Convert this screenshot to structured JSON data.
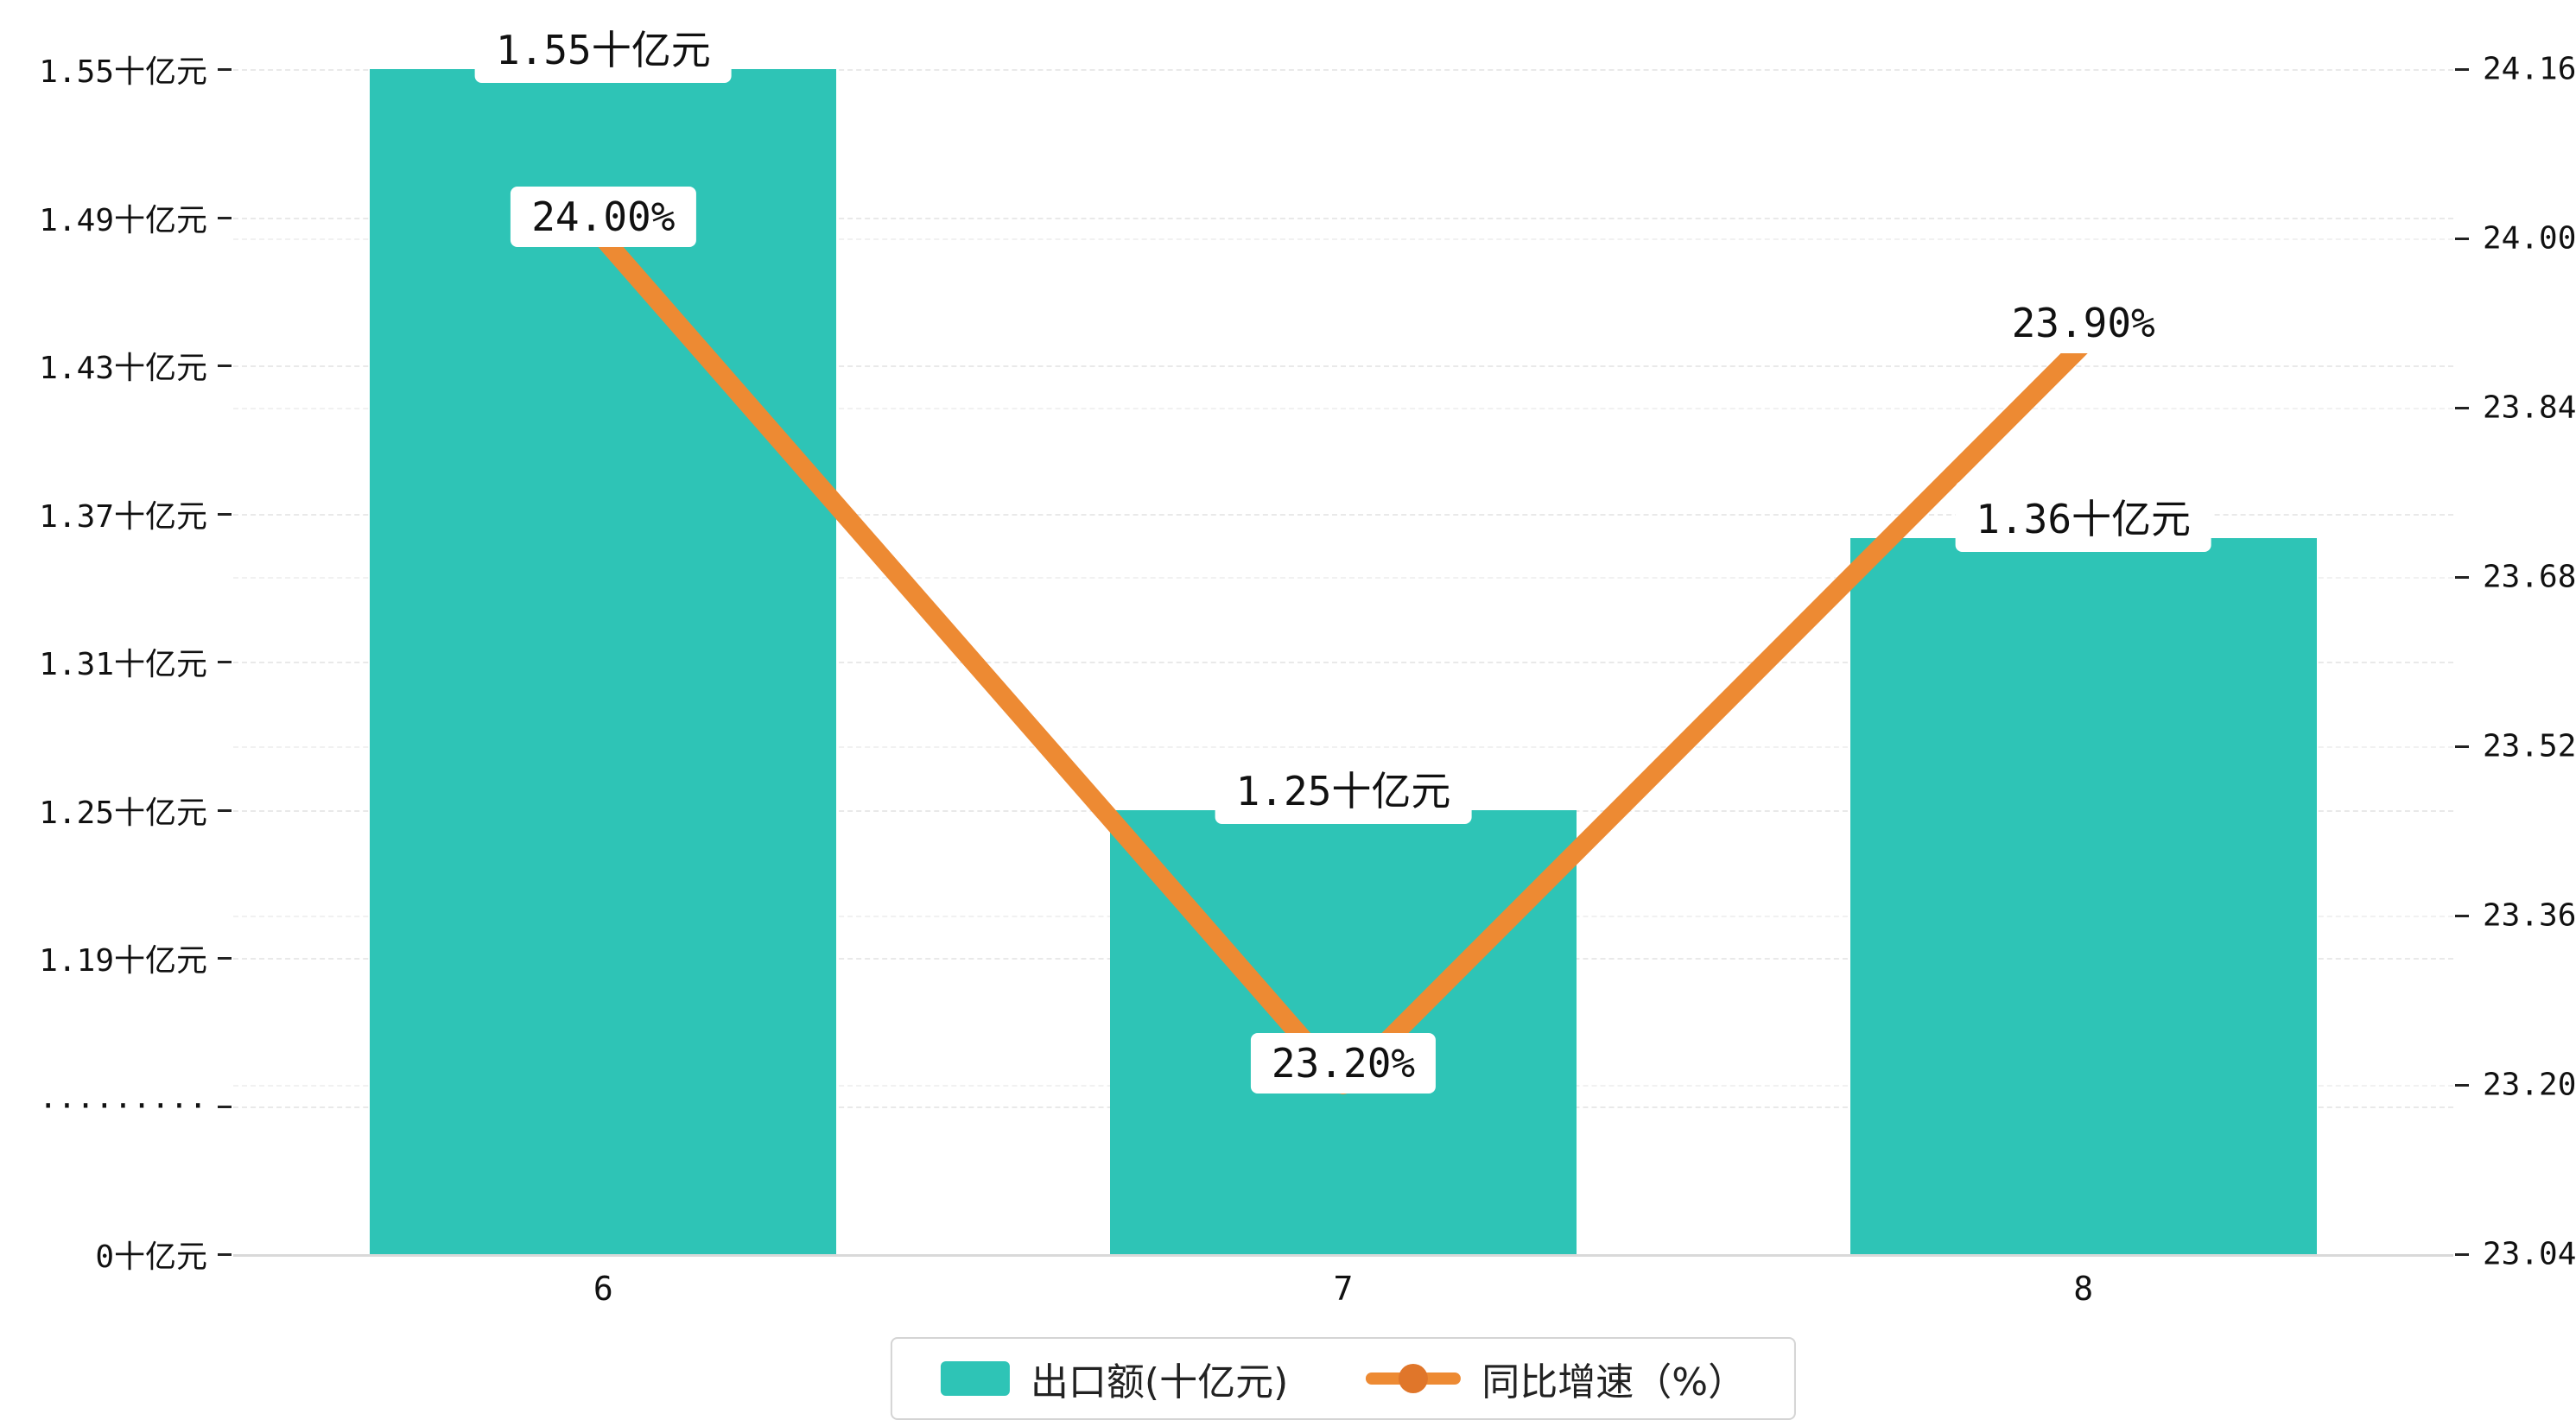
{
  "chart_data": {
    "type": "combo",
    "categories": [
      "6",
      "7",
      "8"
    ],
    "series": [
      {
        "name": "出口额(十亿元)",
        "type": "bar",
        "axis": "left",
        "color": "#2EC4B6",
        "values": [
          1.55,
          1.25,
          1.36
        ],
        "labels": [
          "1.55十亿元",
          "1.25十亿元",
          "1.36十亿元"
        ]
      },
      {
        "name": "同比增速（%）",
        "type": "line",
        "axis": "right",
        "color": "#ED8A33",
        "dot_color": "#E0762A",
        "values": [
          24.0,
          23.2,
          23.9
        ],
        "labels": [
          "24.00%",
          "23.20%",
          "23.90%"
        ]
      }
    ],
    "left_axis": {
      "tick_labels": [
        "1.55十亿元",
        "1.49十亿元",
        "1.43十亿元",
        "1.37十亿元",
        "1.31十亿元",
        "1.25十亿元",
        "1.19十亿元",
        "·········",
        "0十亿元"
      ],
      "top_value": 1.55,
      "step_value": 0.06,
      "broken_axis": true
    },
    "right_axis": {
      "tick_labels": [
        "24.16",
        "24.00",
        "23.84",
        "23.68",
        "23.52",
        "23.36",
        "23.20",
        "23.04"
      ],
      "max": 24.16,
      "min": 23.04
    },
    "legend": {
      "items": [
        {
          "label": "出口额(十亿元)",
          "marker": "bar-swatch"
        },
        {
          "label": "同比增速（%）",
          "marker": "line-marker"
        }
      ]
    },
    "grid": true,
    "legend_position": "bottom",
    "background": "#ffffff"
  }
}
